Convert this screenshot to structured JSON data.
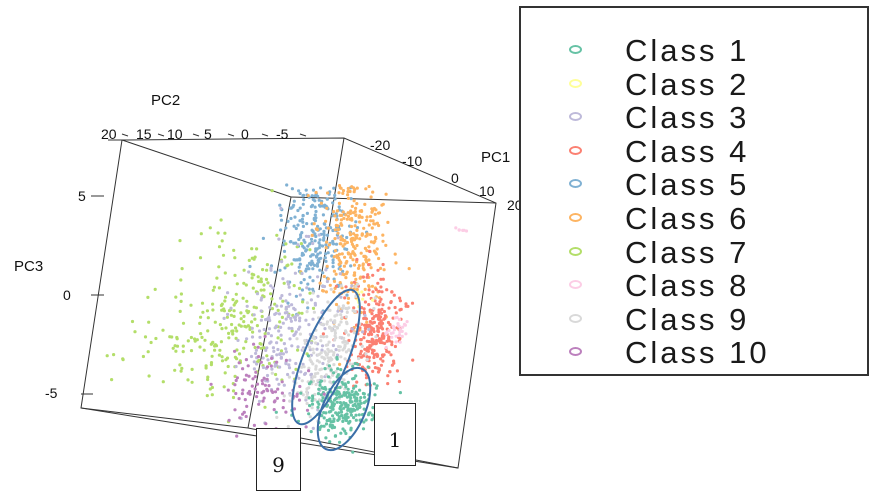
{
  "chart_data": {
    "type": "scatter",
    "projection": "3d",
    "axes": {
      "pc1": {
        "label": "PC1",
        "ticks": [
          "-20",
          "-10",
          "0",
          "10",
          "20"
        ]
      },
      "pc2": {
        "label": "PC2",
        "ticks": [
          "20",
          "15",
          "10",
          "5",
          "0",
          "-5"
        ]
      },
      "pc3": {
        "label": "PC3",
        "ticks": [
          "5",
          "0",
          "-5"
        ]
      }
    },
    "legend": {
      "placement": "right",
      "entries": [
        {
          "label": "Class 1",
          "color": "#66c2a5"
        },
        {
          "label": "Class 2",
          "color": "#ffff99"
        },
        {
          "label": "Class 3",
          "color": "#bebada"
        },
        {
          "label": "Class 4",
          "color": "#fb8072"
        },
        {
          "label": "Class 5",
          "color": "#80b1d3"
        },
        {
          "label": "Class 6",
          "color": "#fdb462"
        },
        {
          "label": "Class 7",
          "color": "#b3de69"
        },
        {
          "label": "Class 8",
          "color": "#fccde5"
        },
        {
          "label": "Class 9",
          "color": "#d9d9d9"
        },
        {
          "label": "Class 10",
          "color": "#bc80bd"
        }
      ]
    },
    "annotations": [
      {
        "text": "9",
        "highlights": "Class 9"
      },
      {
        "text": "1",
        "highlights": "Class 1"
      }
    ],
    "ellipse_color": "#3b6fa8"
  }
}
